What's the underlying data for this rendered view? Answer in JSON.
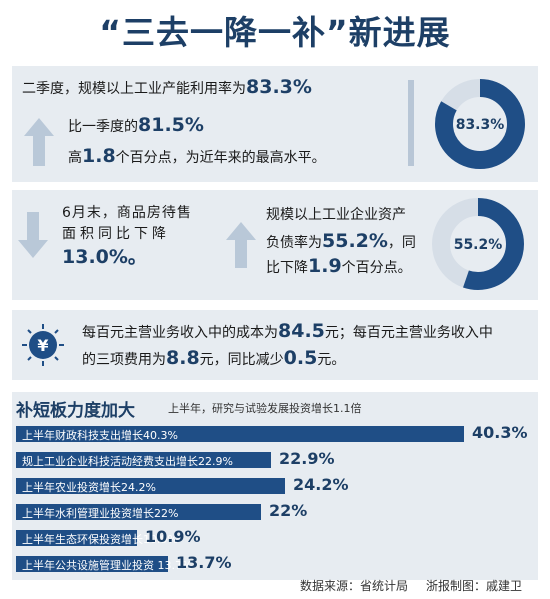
{
  "title": "“三去一降一补”新进展",
  "block1": {
    "line1_text": "二季度，规模以上工业产能利用率为",
    "line1_value": "83.3%",
    "line2_text": "比一季度的",
    "line2_value": "81.5%",
    "line3_prefix": "高",
    "line3_value": "1.8",
    "line3_suffix": "个百分点，为近年来的最高水平。",
    "donut_label": "83.3%",
    "donut_pct": 83.3
  },
  "block2": {
    "left_line1": "6月末，商品房待售",
    "left_line2": "面积同比下降",
    "left_value": "13.0%。",
    "right_line1": "规模以上工业企业资产",
    "right_line2_prefix": "负债率为",
    "right_value": "55.2%",
    "right_line2_suffix": "，同",
    "right_line3_prefix": "比下降",
    "right_value2": "1.9",
    "right_line3_suffix": "个百分点。",
    "donut_label": "55.2%",
    "donut_pct": 55.2
  },
  "block3": {
    "line1_prefix": "每百元主营业务收入中的成本为",
    "line1_value": "84.5",
    "line1_suffix": "元；每百元主营业务收入中",
    "line2_prefix": "的三项费用为",
    "line2_value": "8.8",
    "line2_mid": "元，同比减少",
    "line2_value2": "0.5",
    "line2_suffix": "元。",
    "icon": "yen-coin-icon"
  },
  "chart_data": {
    "type": "bar",
    "title": "补短板力度加大",
    "subtitle": "上半年，研究与试验发展投资增长1.1倍",
    "categories": [
      "上半年财政科技支出增长40.3%",
      "规上工业企业科技活动经费支出增长22.9%",
      "上半年农业投资增长24.2%",
      "上半年水利管理业投资增长22%",
      "上半年生态环保投资增长10.9%",
      "上半年公共设施管理业投资 13.7%"
    ],
    "values": [
      40.3,
      22.9,
      24.2,
      22,
      10.9,
      13.7
    ],
    "value_labels": [
      "40.3%",
      "22.9%",
      "24.2%",
      "22%",
      "10.9%",
      "13.7%"
    ],
    "unit": "%",
    "bar_color": "#1f4e86",
    "xlim": [
      0,
      40.3
    ]
  },
  "footer": {
    "source": "数据来源：省统计局",
    "credit": "浙报制图：戚建卫"
  }
}
